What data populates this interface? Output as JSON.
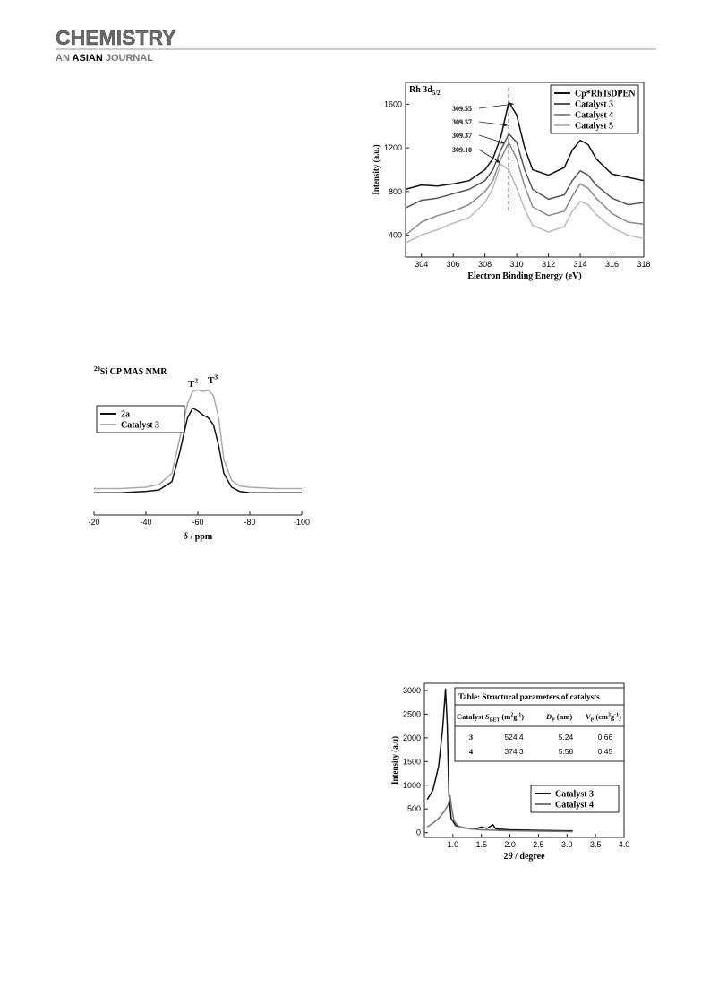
{
  "header": {
    "journal": "CHEMISTRY",
    "subtitle": [
      {
        "t": "AN "
      },
      {
        "t": "ASIAN",
        "s": "em"
      },
      {
        "t": " JOURNAL"
      }
    ]
  },
  "chart_data": [
    {
      "type": "line",
      "title": [
        {
          "t": "Rh 3d"
        },
        {
          "t": "5/2",
          "s": "sub"
        }
      ],
      "x_label": "Electron Binding Energy (eV)",
      "y_label": "Intensity (a.u.)",
      "x": [
        303,
        304,
        305,
        306,
        307,
        308,
        308.5,
        309,
        309.5,
        310,
        310.5,
        311,
        312,
        313,
        313.5,
        314,
        314.5,
        315,
        316,
        317,
        318
      ],
      "series": [
        {
          "name": "Cp*RhTsDPEN",
          "color": "#111111",
          "values": [
            820,
            860,
            850,
            870,
            900,
            1000,
            1100,
            1300,
            1620,
            1500,
            1200,
            1000,
            950,
            1020,
            1180,
            1270,
            1230,
            1100,
            960,
            930,
            900
          ]
        },
        {
          "name": "Catalyst 3",
          "color": "#555555",
          "values": [
            650,
            720,
            740,
            780,
            820,
            900,
            1000,
            1180,
            1330,
            1250,
            1000,
            820,
            730,
            770,
            900,
            990,
            950,
            860,
            740,
            680,
            700
          ]
        },
        {
          "name": "Catalyst 4",
          "color": "#8a8a8a",
          "values": [
            400,
            520,
            580,
            620,
            680,
            800,
            900,
            1100,
            1250,
            1100,
            850,
            660,
            580,
            620,
            760,
            870,
            830,
            740,
            600,
            520,
            500
          ]
        },
        {
          "name": "Catalyst 5",
          "color": "#bbbbbb",
          "values": [
            330,
            400,
            450,
            510,
            560,
            700,
            830,
            1050,
            1000,
            830,
            640,
            490,
            430,
            480,
            620,
            710,
            680,
            590,
            470,
            400,
            370
          ]
        }
      ],
      "xlim": [
        303,
        318
      ],
      "xticks": [
        304,
        306,
        308,
        310,
        312,
        314,
        316,
        318
      ],
      "ylim": [
        200,
        1800
      ],
      "yticks": [
        400,
        800,
        1200,
        1600
      ],
      "legend": "upper right",
      "vline": 309.5,
      "annotations": [
        [
          {
            "t": "309.55"
          }
        ],
        [
          {
            "t": "309.57"
          }
        ],
        [
          {
            "t": "309.37"
          }
        ],
        [
          {
            "t": "309.10"
          }
        ]
      ]
    },
    {
      "type": "line",
      "title": [
        {
          "t": "29",
          "s": "sup"
        },
        {
          "t": "Si CP MAS NMR"
        }
      ],
      "x_label": [
        {
          "t": "δ",
          "s": "it"
        },
        {
          "t": " / ppm"
        }
      ],
      "x": [
        -20,
        -30,
        -40,
        -45,
        -50,
        -53,
        -56,
        -58,
        -60,
        -62,
        -64,
        -66,
        -68,
        -70,
        -73,
        -76,
        -80,
        -90,
        -100
      ],
      "series": [
        {
          "name": "2a",
          "color": "#111111",
          "values": [
            16,
            16,
            17,
            18,
            24,
            45,
            70,
            77,
            75,
            72,
            70,
            65,
            50,
            30,
            20,
            17,
            16,
            16,
            16
          ]
        },
        {
          "name": "Catalyst 3",
          "color": "#aaaaaa",
          "values": [
            19,
            19,
            20,
            22,
            30,
            55,
            80,
            89,
            90,
            89,
            90,
            86,
            70,
            40,
            25,
            21,
            20,
            19,
            19
          ]
        }
      ],
      "xlim": [
        -20,
        -100
      ],
      "xticks": [
        -20,
        -40,
        -60,
        -80,
        -100
      ],
      "ylim": [
        0,
        100
      ],
      "legend": "upper left",
      "annotations": [
        [
          {
            "t": "T"
          },
          {
            "t": "2",
            "s": "sup"
          }
        ],
        [
          {
            "t": "T"
          },
          {
            "t": "3",
            "s": "sup"
          }
        ]
      ]
    },
    {
      "type": "line",
      "x_label": [
        {
          "t": "2"
        },
        {
          "t": "θ",
          "s": "it"
        },
        {
          "t": " / degree"
        }
      ],
      "y_label": "Intensity (a.u)",
      "series": [
        {
          "name": "Catalyst 3",
          "color": "#111111",
          "x": [
            0.55,
            0.65,
            0.75,
            0.82,
            0.87,
            0.9,
            0.93,
            0.97,
            1.05,
            1.2,
            1.4,
            1.5,
            1.6,
            1.7,
            1.75,
            2,
            2.5,
            3,
            3.1
          ],
          "values": [
            700,
            900,
            1400,
            2200,
            3030,
            2300,
            800,
            300,
            150,
            100,
            80,
            120,
            90,
            170,
            80,
            60,
            50,
            40,
            40
          ]
        },
        {
          "name": "Catalyst 4",
          "color": "#777777",
          "x": [
            0.55,
            0.65,
            0.75,
            0.85,
            0.92,
            0.95,
            0.98,
            1.02,
            1.1,
            1.3,
            1.5,
            2,
            3,
            3.1
          ],
          "values": [
            120,
            200,
            300,
            450,
            600,
            780,
            500,
            250,
            130,
            80,
            60,
            40,
            25,
            20
          ]
        }
      ],
      "xlim": [
        0.5,
        4
      ],
      "xticks": [
        {
          "value": 1,
          "label": "1.0"
        },
        1.5,
        {
          "value": 2,
          "label": "2.0"
        },
        2.5,
        {
          "value": 3,
          "label": "3.0"
        },
        3.5,
        {
          "value": 4,
          "label": "4.0"
        }
      ],
      "ylim": [
        -100,
        3150
      ],
      "yticks": [
        0,
        500,
        1000,
        1500,
        2000,
        2500,
        3000
      ],
      "legend": "lower right",
      "table": {
        "title": "Table: Structural parameters of catalysts",
        "header": [
          [
            {
              "t": "Catalyst"
            }
          ],
          [
            {
              "t": "S",
              "s": "it"
            },
            {
              "t": "BET",
              "s": "sub"
            },
            {
              "t": " (m"
            },
            {
              "t": "2",
              "s": "sup"
            },
            {
              "t": "g"
            },
            {
              "t": "-1",
              "s": "sup"
            },
            {
              "t": ")"
            }
          ],
          [
            {
              "t": "D",
              "s": "it"
            },
            {
              "t": "P",
              "s": "sub"
            },
            {
              "t": " (nm)"
            }
          ],
          [
            {
              "t": "V",
              "s": "it"
            },
            {
              "t": "P",
              "s": "sub"
            },
            {
              "t": " (cm"
            },
            {
              "t": "3",
              "s": "sup"
            },
            {
              "t": "g"
            },
            {
              "t": "-1",
              "s": "sup"
            },
            {
              "t": ")"
            }
          ]
        ],
        "rows": [
          [
            3,
            524.4,
            5.24,
            0.66
          ],
          [
            4,
            374.3,
            5.58,
            0.45
          ]
        ]
      }
    }
  ]
}
